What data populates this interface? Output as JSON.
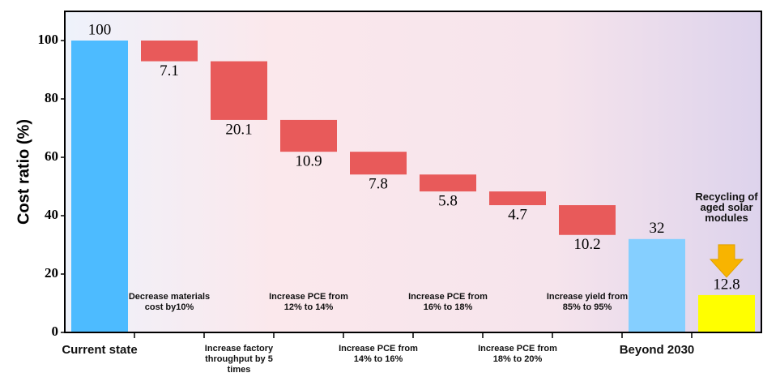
{
  "chart_data": {
    "type": "waterfall",
    "ylabel": "Cost ratio (%)",
    "categories": [
      "Current state",
      "Decrease materials cost by10%",
      "Increase factory throughput by 5 times",
      "Increase PCE from 12% to 14%",
      "Increase PCE from 14% to 16%",
      "Increase PCE from 16% to 18%",
      "Increase PCE from 18% to 20%",
      "Increase yield from 85% to 95%",
      "Beyond 2030",
      "Recycling of aged solar modules"
    ],
    "values": [
      100,
      7.1,
      20.1,
      10.9,
      7.8,
      5.8,
      4.7,
      10.2,
      32,
      12.8
    ],
    "measure": [
      "absolute",
      "relative",
      "relative",
      "relative",
      "relative",
      "relative",
      "relative",
      "relative",
      "absolute",
      "absolute"
    ],
    "colors": [
      "#4dbbff",
      "#e85a5a",
      "#e85a5a",
      "#e85a5a",
      "#e85a5a",
      "#e85a5a",
      "#e85a5a",
      "#e85a5a",
      "#85cfff",
      "#ffff00"
    ],
    "ylim": [
      0,
      110
    ],
    "yticks": [
      0,
      20,
      40,
      60,
      80,
      100
    ],
    "grid": false
  }
}
